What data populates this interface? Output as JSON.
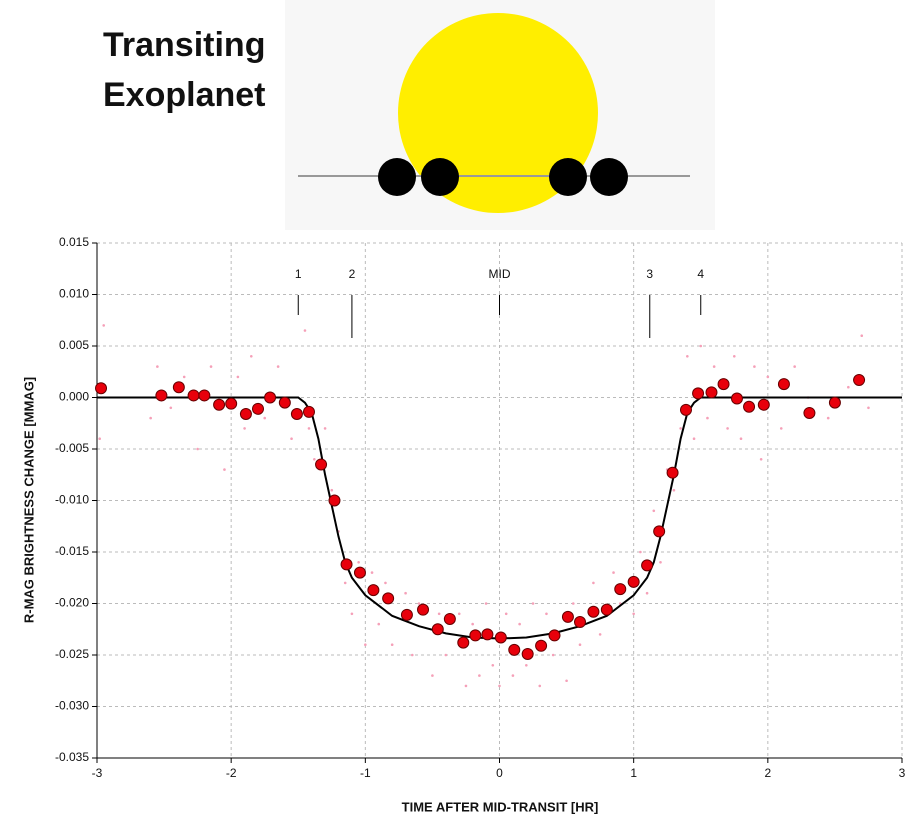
{
  "illustration": {
    "title": [
      "Transiting",
      "Exoplanet"
    ]
  },
  "chart_data": {
    "type": "scatter",
    "xlabel": "TIME AFTER MID-TRANSIT [HR]",
    "ylabel": "R-MAG BRIGHTNESS CHANGE [MMAG]",
    "xlim": [
      -3,
      3
    ],
    "ylim": [
      -0.035,
      0.015
    ],
    "xticks": [
      -3,
      -2,
      -1,
      0,
      1,
      2,
      3
    ],
    "yticks": [
      {
        "value": 0.015,
        "label": "0.015"
      },
      {
        "value": 0.01,
        "label": "0.010"
      },
      {
        "value": 0.005,
        "label": "0.005"
      },
      {
        "value": 0,
        "label": "0.000"
      },
      {
        "value": -0.005,
        "label": "-0.005"
      },
      {
        "value": -0.01,
        "label": "-0.010"
      },
      {
        "value": -0.015,
        "label": "-0.015"
      },
      {
        "value": -0.02,
        "label": "-0.020"
      },
      {
        "value": -0.025,
        "label": "-0.025"
      },
      {
        "value": -0.03,
        "label": "-0.030"
      },
      {
        "value": -0.035,
        "label": "-0.035"
      }
    ],
    "grid": true,
    "annotations": [
      {
        "label": "1",
        "x": -1.5
      },
      {
        "label": "2",
        "x": -1.1
      },
      {
        "label": "MID",
        "x": 0
      },
      {
        "label": "3",
        "x": 1.12
      },
      {
        "label": "4",
        "x": 1.5
      }
    ],
    "series": [
      {
        "style": "dot",
        "color": "#f5a0b8",
        "x": [
          -2.98,
          -2.95,
          -2.6,
          -2.55,
          -2.45,
          -2.35,
          -2.25,
          -2.15,
          -2.05,
          -1.95,
          -1.9,
          -1.85,
          -1.75,
          -1.65,
          -1.55,
          -1.45,
          -1.42,
          -1.38,
          -1.3,
          -1.25,
          -1.2,
          -1.15,
          -1.1,
          -1.05,
          -1.0,
          -0.95,
          -0.9,
          -0.85,
          -0.8,
          -0.7,
          -0.65,
          -0.6,
          -0.5,
          -0.45,
          -0.4,
          -0.3,
          -0.25,
          -0.2,
          -0.15,
          -0.1,
          -0.05,
          0,
          0.05,
          0.1,
          0.15,
          0.2,
          0.25,
          0.3,
          0.35,
          0.4,
          0.5,
          0.55,
          0.6,
          0.7,
          0.75,
          0.85,
          0.9,
          1.0,
          1.05,
          1.1,
          1.15,
          1.2,
          1.25,
          1.3,
          1.35,
          1.4,
          1.45,
          1.5,
          1.55,
          1.6,
          1.7,
          1.75,
          1.8,
          1.9,
          1.95,
          2.0,
          2.1,
          2.2,
          2.3,
          2.45,
          2.6,
          2.7,
          2.75
        ],
        "values": [
          -0.004,
          0.007,
          -0.002,
          0.003,
          -0.001,
          0.002,
          -0.005,
          0.003,
          -0.007,
          0.002,
          -0.003,
          0.004,
          -0.002,
          0.003,
          -0.004,
          0.0065,
          -0.003,
          -0.006,
          -0.003,
          -0.009,
          -0.013,
          -0.018,
          -0.021,
          -0.016,
          -0.024,
          -0.017,
          -0.022,
          -0.018,
          -0.024,
          -0.019,
          -0.025,
          -0.02,
          -0.027,
          -0.021,
          -0.025,
          -0.021,
          -0.028,
          -0.022,
          -0.027,
          -0.02,
          -0.026,
          -0.028,
          -0.021,
          -0.027,
          -0.022,
          -0.026,
          -0.02,
          -0.028,
          -0.021,
          -0.025,
          -0.0275,
          -0.02,
          -0.024,
          -0.018,
          -0.023,
          -0.017,
          -0.02,
          -0.021,
          -0.015,
          -0.019,
          -0.011,
          -0.016,
          -0.007,
          -0.009,
          -0.003,
          0.004,
          -0.004,
          0.005,
          -0.002,
          0.003,
          -0.003,
          0.004,
          -0.004,
          0.003,
          -0.006,
          0.002,
          -0.003,
          0.003,
          0,
          -0.002,
          0.001,
          0.006,
          -0.001
        ]
      },
      {
        "style": "line",
        "color": "#000000",
        "x": [
          -3,
          -1.5,
          -1.45,
          -1.4,
          -1.35,
          -1.3,
          -1.25,
          -1.2,
          -1.15,
          -1.1,
          -1.0,
          -0.8,
          -0.6,
          -0.4,
          -0.2,
          0,
          0.2,
          0.4,
          0.6,
          0.8,
          1.0,
          1.1,
          1.15,
          1.2,
          1.25,
          1.3,
          1.35,
          1.4,
          1.45,
          1.5,
          3
        ],
        "values": [
          0,
          0,
          -0.0005,
          -0.0015,
          -0.004,
          -0.0075,
          -0.0105,
          -0.0135,
          -0.016,
          -0.0175,
          -0.0192,
          -0.0212,
          -0.0222,
          -0.0229,
          -0.0233,
          -0.0234,
          -0.0233,
          -0.0229,
          -0.0222,
          -0.0212,
          -0.0192,
          -0.0175,
          -0.016,
          -0.0135,
          -0.0105,
          -0.0075,
          -0.004,
          -0.0015,
          -0.0005,
          0,
          0
        ]
      },
      {
        "style": "marker",
        "color": "#e8000b",
        "x": [
          -2.97,
          -2.52,
          -2.39,
          -2.28,
          -2.2,
          -2.09,
          -2.0,
          -1.89,
          -1.8,
          -1.71,
          -1.6,
          -1.51,
          -1.42,
          -1.33,
          -1.23,
          -1.14,
          -1.04,
          -0.94,
          -0.83,
          -0.69,
          -0.57,
          -0.46,
          -0.37,
          -0.27,
          -0.18,
          -0.09,
          0.01,
          0.11,
          0.21,
          0.31,
          0.41,
          0.51,
          0.6,
          0.7,
          0.8,
          0.9,
          1.0,
          1.1,
          1.19,
          1.29,
          1.39,
          1.48,
          1.58,
          1.67,
          1.77,
          1.86,
          1.97,
          2.12,
          2.31,
          2.5,
          2.68
        ],
        "values": [
          0.0009,
          0.0002,
          0.001,
          0.0002,
          0.0002,
          -0.0007,
          -0.0006,
          -0.0016,
          -0.0011,
          0,
          -0.0005,
          -0.0016,
          -0.0014,
          -0.0065,
          -0.01,
          -0.0162,
          -0.017,
          -0.0187,
          -0.0195,
          -0.0211,
          -0.0206,
          -0.0225,
          -0.0215,
          -0.0238,
          -0.0231,
          -0.023,
          -0.0233,
          -0.0245,
          -0.0249,
          -0.0241,
          -0.0231,
          -0.0213,
          -0.0218,
          -0.0208,
          -0.0206,
          -0.0186,
          -0.0179,
          -0.0163,
          -0.013,
          -0.0073,
          -0.0012,
          0.0004,
          0.0005,
          0.0013,
          -0.0001,
          -0.0009,
          -0.0007,
          0.0013,
          -0.0015,
          -0.0005,
          0.0017
        ]
      }
    ]
  }
}
